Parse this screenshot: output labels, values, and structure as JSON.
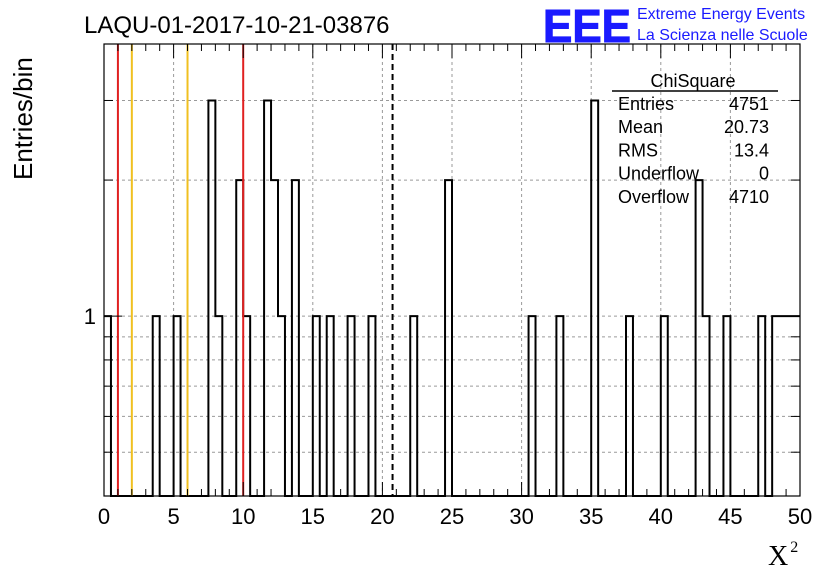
{
  "header": {
    "title": "LAQU-01-2017-10-21-03876",
    "logo_text": "EEE",
    "logo_line1": "Extreme Energy Events",
    "logo_line2": "La Scienza nelle Scuole",
    "logo_color": "#1a1aff"
  },
  "stats": {
    "name": "ChiSquare",
    "rows": [
      {
        "label": "Entries",
        "value": "4751"
      },
      {
        "label": "Mean",
        "value": "20.73"
      },
      {
        "label": "RMS",
        "value": "13.4"
      },
      {
        "label": "Underflow",
        "value": "0"
      },
      {
        "label": "Overflow",
        "value": "4710"
      }
    ]
  },
  "chart_data": {
    "type": "bar",
    "histogram": true,
    "xlabel": "X",
    "xlabel_superscript": "2",
    "ylabel": "Entries/bin",
    "xlim": [
      0,
      50
    ],
    "ylim": [
      0.4,
      4
    ],
    "yscale": "log",
    "bin_width": 0.5,
    "grid": true,
    "x_ticks": [
      0,
      5,
      10,
      15,
      20,
      25,
      30,
      35,
      40,
      45,
      50
    ],
    "y_tick_labels": [
      {
        "value": 1,
        "label": "1"
      }
    ],
    "bins": [
      {
        "x": 0,
        "v": 1
      },
      {
        "x": 3.5,
        "v": 1
      },
      {
        "x": 5,
        "v": 1
      },
      {
        "x": 7.5,
        "v": 3
      },
      {
        "x": 8,
        "v": 1
      },
      {
        "x": 9.5,
        "v": 2
      },
      {
        "x": 10,
        "v": 1
      },
      {
        "x": 11.5,
        "v": 3
      },
      {
        "x": 12,
        "v": 2
      },
      {
        "x": 12.5,
        "v": 1
      },
      {
        "x": 13.5,
        "v": 2
      },
      {
        "x": 15,
        "v": 1
      },
      {
        "x": 16,
        "v": 1
      },
      {
        "x": 17.5,
        "v": 1
      },
      {
        "x": 19,
        "v": 1
      },
      {
        "x": 22,
        "v": 1
      },
      {
        "x": 24.5,
        "v": 2
      },
      {
        "x": 30.5,
        "v": 1
      },
      {
        "x": 32.5,
        "v": 1
      },
      {
        "x": 35,
        "v": 3
      },
      {
        "x": 37.5,
        "v": 1
      },
      {
        "x": 40,
        "v": 1
      },
      {
        "x": 42.5,
        "v": 2
      },
      {
        "x": 43,
        "v": 1
      },
      {
        "x": 44.5,
        "v": 1
      },
      {
        "x": 47,
        "v": 1
      },
      {
        "x": 48,
        "v": 1
      },
      {
        "x": 48.5,
        "v": 1
      },
      {
        "x": 49,
        "v": 1
      },
      {
        "x": 49.5,
        "v": 1
      }
    ],
    "reference_lines": [
      {
        "x": 1,
        "color": "#e02020",
        "style": "solid"
      },
      {
        "x": 2,
        "color": "#f0c020",
        "style": "solid"
      },
      {
        "x": 6,
        "color": "#f0c020",
        "style": "solid"
      },
      {
        "x": 10,
        "color": "#e02020",
        "style": "solid"
      },
      {
        "x": 20.73,
        "color": "#000000",
        "style": "dashed"
      }
    ]
  }
}
